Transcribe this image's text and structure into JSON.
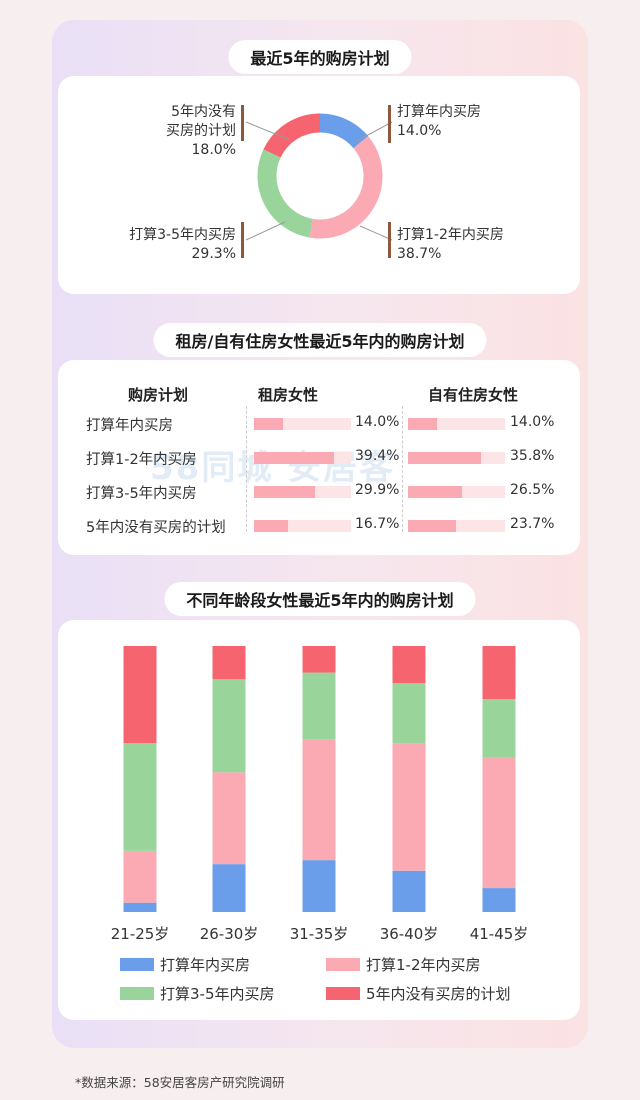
{
  "colors": {
    "blue": "#6b9eea",
    "pink": "#fbaab3",
    "green": "#99d49a",
    "red": "#f5646f"
  },
  "section1": {
    "title": "最近5年的购房计划",
    "donut": [
      {
        "label_lines": [
          "打算年内买房"
        ],
        "pct": "14.0%",
        "value": 14.0,
        "color": "#6b9eea"
      },
      {
        "label_lines": [
          "打算1-2年内买房"
        ],
        "pct": "38.7%",
        "value": 38.7,
        "color": "#fbaab3"
      },
      {
        "label_lines": [
          "打算3-5年内买房"
        ],
        "pct": "29.3%",
        "value": 29.3,
        "color": "#99d49a"
      },
      {
        "label_lines": [
          "5年内没有",
          "买房的计划"
        ],
        "pct": "18.0%",
        "value": 18.0,
        "color": "#f5646f"
      }
    ]
  },
  "section2": {
    "title": "租房/自有住房女性最近5年内的购房计划",
    "headers": {
      "plan": "购房计划",
      "rent": "租房女性",
      "own": "自有住房女性"
    },
    "rows": [
      {
        "label": "打算年内买房",
        "rent": 14.0,
        "rent_text": "14.0%",
        "own": 14.0,
        "own_text": "14.0%"
      },
      {
        "label": "打算1-2年内买房",
        "rent": 39.4,
        "rent_text": "39.4%",
        "own": 35.8,
        "own_text": "35.8%"
      },
      {
        "label": "打算3-5年内买房",
        "rent": 29.9,
        "rent_text": "29.9%",
        "own": 26.5,
        "own_text": "26.5%"
      },
      {
        "label": "5年内没有买房的计划",
        "rent": 16.7,
        "rent_text": "16.7%",
        "own": 23.7,
        "own_text": "23.7%"
      }
    ],
    "watermark": "58同城 安居客"
  },
  "chart_data": {
    "type": "bar",
    "stacked": true,
    "title": "不同年龄段女性最近5年内的购房计划",
    "categories": [
      "21-25岁",
      "26-30岁",
      "31-35岁",
      "36-40岁",
      "41-45岁"
    ],
    "series": [
      {
        "name": "打算年内买房",
        "color": "#6b9eea",
        "values": [
          3.5,
          18.0,
          19.5,
          15.5,
          9.0
        ]
      },
      {
        "name": "打算1-2年内买房",
        "color": "#fbaab3",
        "values": [
          19.5,
          34.5,
          45.5,
          48.0,
          49.0
        ]
      },
      {
        "name": "打算3-5年内买房",
        "color": "#99d49a",
        "values": [
          40.5,
          35.0,
          25.0,
          22.5,
          22.0
        ]
      },
      {
        "name": "5年内没有买房的计划",
        "color": "#f5646f",
        "values": [
          36.5,
          12.5,
          10.0,
          14.0,
          20.0
        ]
      }
    ],
    "ylim": [
      0,
      100
    ],
    "legend": "bottom"
  },
  "footer": "*数据来源：58安居客房产研究院调研"
}
